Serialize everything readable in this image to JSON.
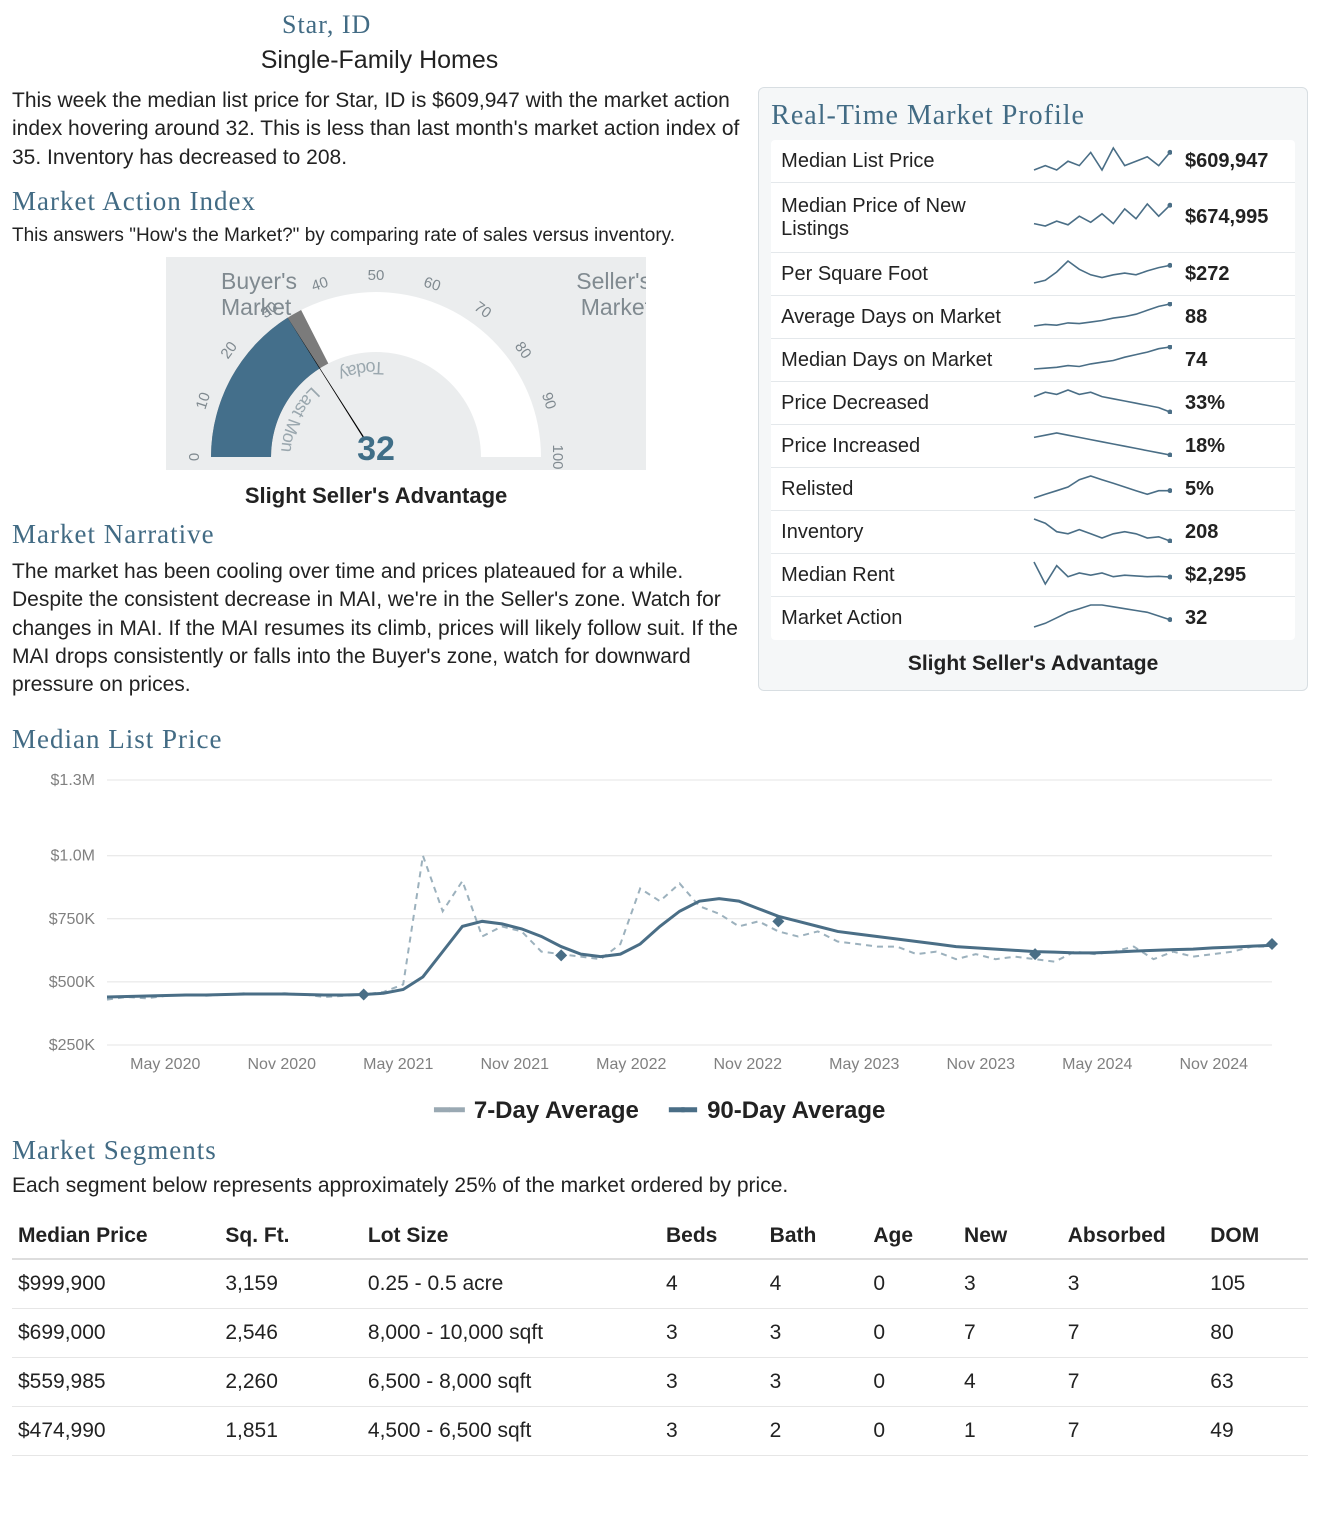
{
  "header": {
    "city": "Star, ID",
    "subtitle": "Single-Family Homes"
  },
  "intro_text": "This week the median list price for Star, ID is $609,947 with the market action index hovering around 32. This is less than last month's market action index of 35. Inventory has decreased to 208.",
  "mai": {
    "title": "Market Action Index",
    "desc": "This answers \"How's the Market?\" by comparing rate of sales versus inventory.",
    "value": 32,
    "last_month": 35,
    "caption": "Slight Seller's Advantage",
    "left_label1": "Buyer's",
    "left_label2": "Market",
    "right_label1": "Seller's",
    "right_label2": "Market",
    "today": "Today",
    "lastmonth": "Last Month",
    "ticks": [
      0,
      10,
      20,
      30,
      40,
      50,
      60,
      70,
      80,
      90,
      100
    ],
    "colors": {
      "bg": "#ebedee",
      "filled": "#446f8b",
      "prev": "#7b7b7b",
      "empty": "#ffffff",
      "needle": "#000000",
      "tick_text": "#808a90",
      "label_text": "#808a90",
      "inner_text": "#9aa7ae",
      "value": "#3f6e87"
    }
  },
  "narrative": {
    "title": "Market Narrative",
    "text": "The market has been cooling over time and prices plateaued for a while. Despite the consistent decrease in MAI, we're in the Seller's zone. Watch for changes in MAI. If the MAI resumes its climb, prices will likely follow suit. If the MAI drops consistently or falls into the Buyer's zone, watch for downward pressure on prices."
  },
  "profile": {
    "title": "Real-Time Market Profile",
    "rows": [
      {
        "label": "Median List Price",
        "value": "$609,947",
        "spark": [
          450,
          455,
          450,
          460,
          455,
          470,
          450,
          475,
          455,
          460,
          465,
          455,
          470
        ]
      },
      {
        "label": "Median Price of New Listings",
        "value": "$674,995",
        "spark": [
          500,
          490,
          510,
          495,
          530,
          505,
          540,
          500,
          560,
          520,
          580,
          530,
          575
        ],
        "tall": true
      },
      {
        "label": "Per Square Foot",
        "value": "$272",
        "spark": [
          240,
          245,
          260,
          280,
          265,
          255,
          250,
          255,
          258,
          255,
          262,
          268,
          272
        ]
      },
      {
        "label": "Average Days on Market",
        "value": "88",
        "spark": [
          60,
          62,
          61,
          64,
          63,
          65,
          67,
          70,
          72,
          75,
          80,
          85,
          88
        ]
      },
      {
        "label": "Median Days on Market",
        "value": "74",
        "spark": [
          48,
          49,
          50,
          52,
          51,
          54,
          56,
          58,
          62,
          65,
          68,
          72,
          74
        ]
      },
      {
        "label": "Price Decreased",
        "value": "33%",
        "spark": [
          40,
          42,
          41,
          43,
          41,
          42,
          40,
          39,
          38,
          37,
          36,
          35,
          33
        ]
      },
      {
        "label": "Price Increased",
        "value": "18%",
        "spark": [
          26,
          27,
          28,
          27,
          26,
          25,
          24,
          23,
          22,
          21,
          20,
          19,
          18
        ]
      },
      {
        "label": "Relisted",
        "value": "5%",
        "spark": [
          3,
          4,
          5,
          6,
          8,
          9,
          8,
          7,
          6,
          5,
          4,
          5,
          5
        ]
      },
      {
        "label": "Inventory",
        "value": "208",
        "spark": [
          260,
          250,
          230,
          225,
          235,
          225,
          215,
          225,
          230,
          225,
          215,
          218,
          208
        ]
      },
      {
        "label": "Median Rent",
        "value": "$2,295",
        "spark": [
          2500,
          2200,
          2450,
          2300,
          2350,
          2320,
          2350,
          2300,
          2320,
          2310,
          2300,
          2305,
          2295
        ]
      },
      {
        "label": "Market Action",
        "value": "32",
        "spark": [
          28,
          30,
          33,
          36,
          38,
          40,
          40,
          39,
          38,
          37,
          36,
          34,
          32
        ]
      }
    ],
    "footer": "Slight Seller's Advantage",
    "spark_color": "#4a6e86"
  },
  "median_chart": {
    "title": "Median List Price",
    "y_ticks": [
      {
        "v": 250,
        "l": "$250K"
      },
      {
        "v": 500,
        "l": "$500K"
      },
      {
        "v": 750,
        "l": "$750K"
      },
      {
        "v": 1000,
        "l": "$1.0M"
      },
      {
        "v": 1300,
        "l": "$1.3M"
      }
    ],
    "x_labels": [
      "May 2020",
      "Nov 2020",
      "May 2021",
      "Nov 2021",
      "May 2022",
      "Nov 2022",
      "May 2023",
      "Nov 2023",
      "May 2024",
      "Nov 2024"
    ],
    "ylim": [
      250,
      1300
    ],
    "legend7": "7-Day Average",
    "legend90": "90-Day Average",
    "colors": {
      "grid": "#e4e4e4",
      "axis_text": "#808080",
      "line7": "#9cb1bd",
      "line90": "#4a6e86",
      "marker": "#4a6e86",
      "bg": "#ffffff"
    },
    "series7": [
      430,
      440,
      435,
      445,
      450,
      445,
      450,
      455,
      450,
      455,
      450,
      440,
      445,
      450,
      460,
      490,
      1000,
      780,
      900,
      680,
      720,
      700,
      620,
      610,
      600,
      590,
      650,
      870,
      820,
      890,
      800,
      770,
      720,
      740,
      700,
      680,
      700,
      660,
      650,
      640,
      640,
      610,
      620,
      590,
      610,
      590,
      600,
      590,
      580,
      620,
      610,
      620,
      640,
      590,
      620,
      600,
      610,
      620,
      640,
      640
    ],
    "series90": [
      440,
      442,
      444,
      446,
      448,
      448,
      450,
      452,
      452,
      452,
      450,
      448,
      448,
      450,
      455,
      470,
      520,
      620,
      720,
      740,
      730,
      710,
      680,
      640,
      610,
      600,
      610,
      650,
      720,
      780,
      820,
      830,
      820,
      790,
      760,
      740,
      720,
      700,
      690,
      680,
      670,
      660,
      650,
      640,
      635,
      630,
      625,
      620,
      618,
      615,
      615,
      618,
      622,
      625,
      628,
      630,
      635,
      638,
      642,
      645
    ],
    "markers": [
      {
        "i": 13,
        "v": 450
      },
      {
        "i": 23,
        "v": 605
      },
      {
        "i": 34,
        "v": 740
      },
      {
        "i": 47,
        "v": 610
      },
      {
        "i": 59,
        "v": 650
      }
    ]
  },
  "segments": {
    "title": "Market Segments",
    "desc": "Each segment below represents approximately 25% of the market ordered by price.",
    "columns": [
      "Median Price",
      "Sq. Ft.",
      "Lot Size",
      "Beds",
      "Bath",
      "Age",
      "New",
      "Absorbed",
      "DOM"
    ],
    "rows": [
      [
        "$999,900",
        "3,159",
        "0.25 - 0.5 acre",
        "4",
        "4",
        "0",
        "3",
        "3",
        "105"
      ],
      [
        "$699,000",
        "2,546",
        "8,000 - 10,000 sqft",
        "3",
        "3",
        "0",
        "7",
        "7",
        "80"
      ],
      [
        "$559,985",
        "2,260",
        "6,500 - 8,000 sqft",
        "3",
        "3",
        "0",
        "4",
        "7",
        "63"
      ],
      [
        "$474,990",
        "1,851",
        "4,500 - 6,500 sqft",
        "3",
        "2",
        "0",
        "1",
        "7",
        "49"
      ]
    ]
  }
}
